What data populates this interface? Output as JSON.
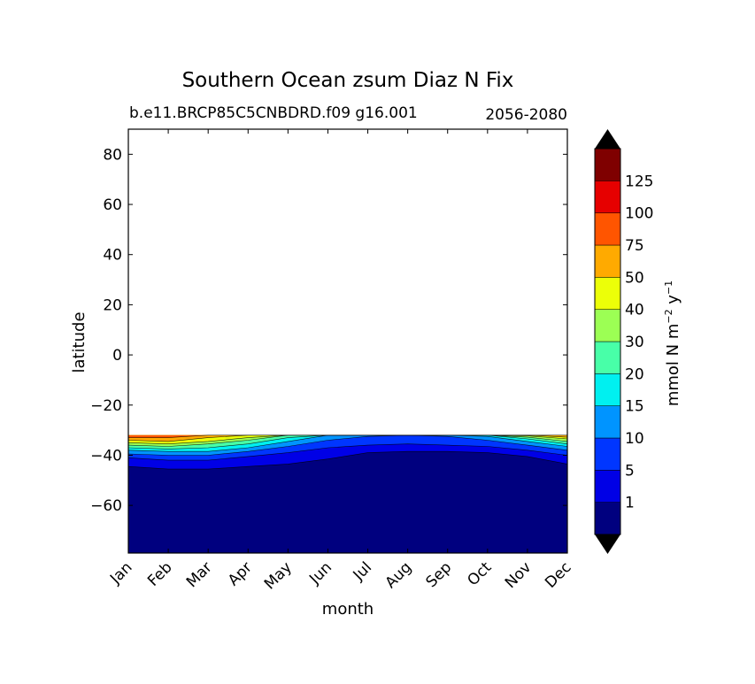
{
  "chart_data": {
    "type": "contour",
    "title": "Southern Ocean zsum Diaz N Fix",
    "subtitle_left": "b.e11.BRCP85C5CNBDRD.f09 g16.001",
    "subtitle_right": "2056-2080",
    "xlabel": "month",
    "ylabel": "latitude",
    "x_categories": [
      "Jan",
      "Feb",
      "Mar",
      "Apr",
      "May",
      "Jun",
      "Jul",
      "Aug",
      "Sep",
      "Oct",
      "Nov",
      "Dec"
    ],
    "yticks": [
      80,
      60,
      40,
      20,
      0,
      -20,
      -40,
      -60
    ],
    "ylim": [
      -79,
      90
    ],
    "data_lat_max": -32,
    "contour_levels": [
      1,
      5,
      10,
      15,
      20,
      30,
      40,
      50,
      75,
      100,
      125
    ],
    "colorbar": {
      "label_main": "mmol N m",
      "label_sup1": "−2",
      "label_mid": " y",
      "label_sup2": "−1",
      "tick_labels": [
        "1",
        "5",
        "10",
        "15",
        "20",
        "30",
        "40",
        "50",
        "75",
        "100",
        "125"
      ],
      "colors": [
        "#00007f",
        "#0000e6",
        "#0036ff",
        "#0094ff",
        "#00f0f0",
        "#48ffa8",
        "#9cff54",
        "#ecff08",
        "#ffaa00",
        "#ff5500",
        "#e60000",
        "#7f0000"
      ],
      "extend": "both"
    },
    "contours": {
      "bands": [
        {
          "level_index": 1,
          "lat_top": [
            -44.5,
            -45.5,
            -45.5,
            -44.5,
            -43.5,
            -41.5,
            -39,
            -38.5,
            -38.5,
            -39,
            -40.5,
            -43.5
          ]
        },
        {
          "level_index": 2,
          "lat_top": [
            -41,
            -42,
            -42,
            -40.5,
            -39,
            -37,
            -36,
            -35.5,
            -36,
            -36.5,
            -38,
            -40
          ]
        },
        {
          "level_index": 3,
          "lat_top": [
            -39.5,
            -40,
            -40,
            -38.5,
            -36.5,
            -34,
            -32.5,
            -32,
            -32.5,
            -34,
            -36,
            -38
          ]
        },
        {
          "level_index": 4,
          "lat_top": [
            -38,
            -38.5,
            -38.5,
            -37,
            -34.5,
            -32,
            -32,
            -32,
            -32,
            -32.5,
            -34.5,
            -36.5
          ]
        },
        {
          "level_index": 5,
          "lat_top": [
            -37,
            -37.5,
            -37,
            -35.5,
            -33,
            -32,
            -32,
            -32,
            -32,
            -32,
            -33.5,
            -35.5
          ]
        },
        {
          "level_index": 6,
          "lat_top": [
            -36,
            -36.5,
            -35.5,
            -34,
            -32,
            -32,
            -32,
            -32,
            -32,
            -32,
            -32.8,
            -34.5
          ]
        },
        {
          "level_index": 7,
          "lat_top": [
            -35,
            -35.5,
            -34.5,
            -33,
            -32,
            -32,
            -32,
            -32,
            -32,
            -32,
            -32.3,
            -33.5
          ]
        },
        {
          "level_index": 8,
          "lat_top": [
            -34,
            -34.5,
            -33,
            -32,
            -32,
            -32,
            -32,
            -32,
            -32,
            -32,
            -32,
            -32.8
          ]
        },
        {
          "level_index": 9,
          "lat_top": [
            -33,
            -33,
            -32,
            -32,
            -32,
            -32,
            -32,
            -32,
            -32,
            -32,
            -32,
            -32
          ]
        }
      ]
    }
  }
}
